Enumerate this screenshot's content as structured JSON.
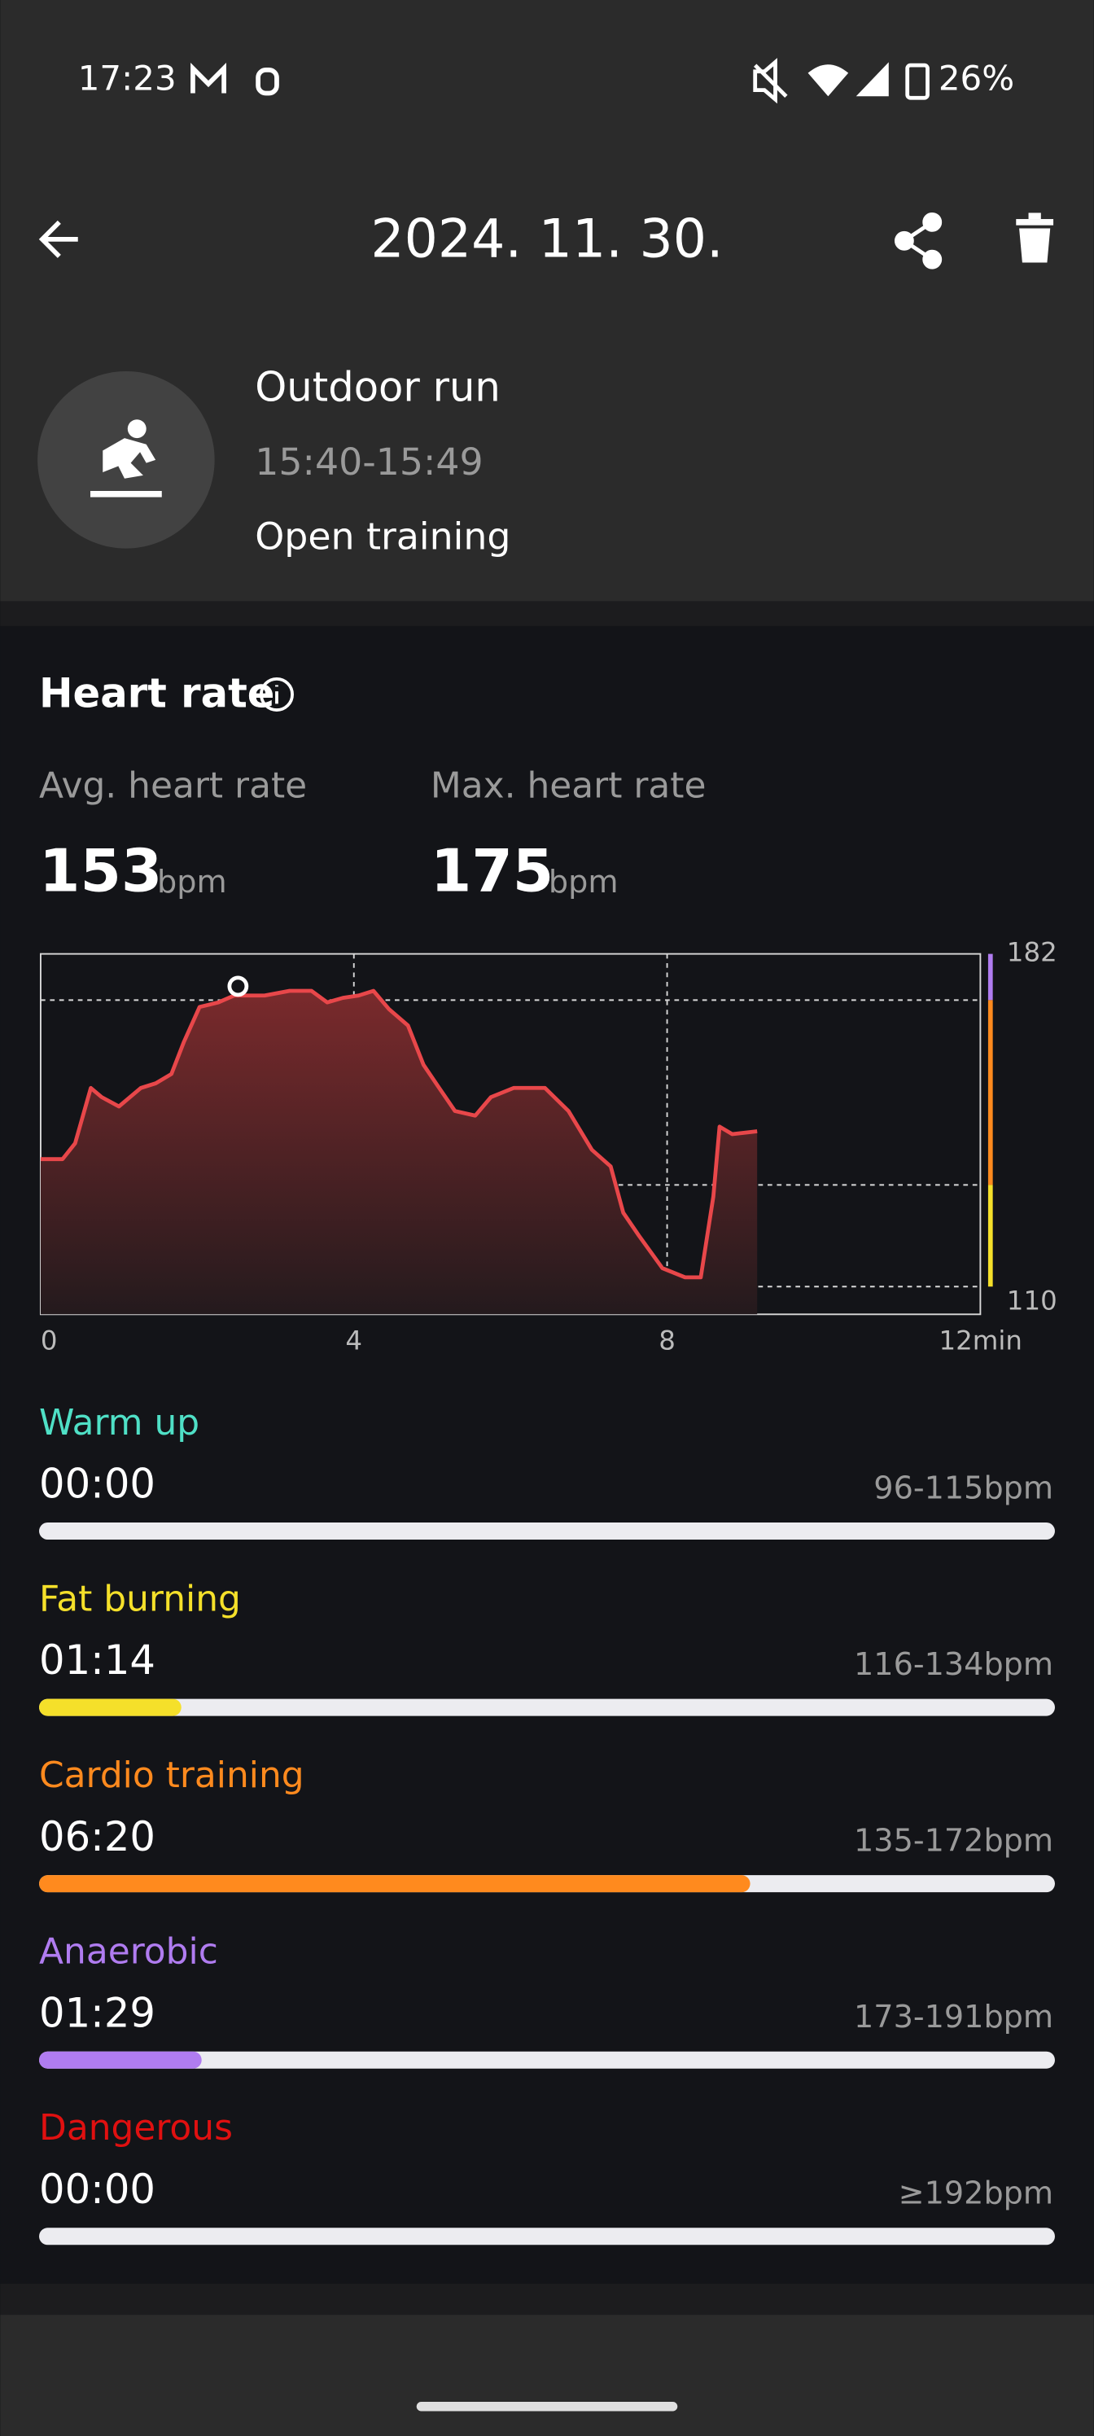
{
  "status_bar": {
    "time": "17:23",
    "battery": "26%"
  },
  "header": {
    "title": "2024. 11. 30."
  },
  "activity": {
    "name": "Outdoor run",
    "time": "15:40-15:49",
    "mode": "Open training"
  },
  "heart_rate": {
    "title": "Heart rate",
    "avg_label": "Avg. heart rate",
    "avg_value": 153,
    "max_label": "Max. heart rate",
    "max_value": 175,
    "unit": "bpm"
  },
  "chart_data": {
    "type": "line",
    "x": [
      0,
      0.28,
      0.44,
      0.64,
      0.78,
      1,
      1.28,
      1.47,
      1.67,
      1.83,
      2.03,
      2.27,
      2.47,
      2.67,
      2.86,
      3.18,
      3.46,
      3.66,
      3.86,
      4.06,
      4.25,
      4.45,
      4.69,
      4.89,
      5.09,
      5.29,
      5.55,
      5.75,
      6.04,
      6.44,
      6.74,
      7.04,
      7.28,
      7.44,
      7.64,
      7.94,
      8.23,
      8.43,
      8.59,
      8.67,
      8.83,
      9.15
    ],
    "series": [
      {
        "color": "#e8474a",
        "values": [
          137.6,
          137.6,
          141,
          153,
          151,
          149,
          153,
          154,
          156,
          163,
          170.5,
          171.5,
          173,
          173,
          173,
          174,
          174,
          171.5,
          172.5,
          173,
          174,
          170,
          166.5,
          158,
          153,
          148,
          147,
          151,
          153,
          153,
          148,
          139.6,
          136,
          126,
          121,
          114,
          112,
          112,
          129.5,
          144.6,
          143,
          143.6
        ]
      }
    ],
    "xlim": [
      0,
      12
    ],
    "xticks": [
      0,
      4,
      8,
      {
        "value": 12,
        "label": "12min"
      }
    ],
    "ylim": [
      104,
      182
    ],
    "yticks": [
      110,
      182
    ],
    "hlines": [
      132,
      172
    ],
    "max_marker": {
      "x": 2.52,
      "y": 175
    }
  },
  "zones": [
    {
      "name": "Warm up",
      "color": "#4fe0c6",
      "duration": "00:00",
      "range": "96-115bpm",
      "share": 0
    },
    {
      "name": "Fat burning",
      "color": "#f5e02a",
      "duration": "01:14",
      "range": "116-134bpm",
      "share": 14
    },
    {
      "name": "Cardio training",
      "color": "#ff8a1e",
      "duration": "06:20",
      "range": "135-172bpm",
      "share": 70
    },
    {
      "name": "Anaerobic",
      "color": "#b07cf0",
      "duration": "01:29",
      "range": "173-191bpm",
      "share": 16
    },
    {
      "name": "Dangerous",
      "color": "#e01010",
      "duration": "00:00",
      "range": "≥192bpm",
      "share": 0
    }
  ]
}
